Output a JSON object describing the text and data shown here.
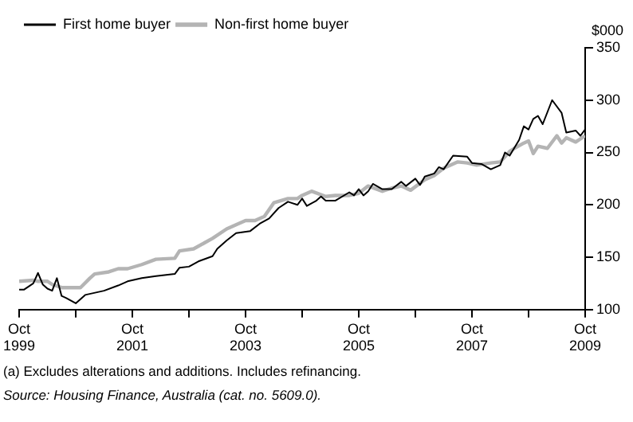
{
  "chart_data": {
    "type": "line",
    "ylabel": "$000",
    "xlim": [
      "1999-10",
      "2009-10"
    ],
    "xticks": [
      {
        "value": "1999-10",
        "label": "Oct 1999"
      },
      {
        "value": "2000-10",
        "label": null
      },
      {
        "value": "2001-10",
        "label": "Oct 2001"
      },
      {
        "value": "2002-10",
        "label": null
      },
      {
        "value": "2003-10",
        "label": "Oct 2003"
      },
      {
        "value": "2004-10",
        "label": null
      },
      {
        "value": "2005-10",
        "label": "Oct 2005"
      },
      {
        "value": "2006-10",
        "label": null
      },
      {
        "value": "2007-10",
        "label": "Oct 2007"
      },
      {
        "value": "2008-10",
        "label": null
      },
      {
        "value": "2009-10",
        "label": "Oct 2009"
      }
    ],
    "ylim": [
      100,
      350
    ],
    "yticks": [
      100,
      150,
      200,
      250,
      300,
      350
    ],
    "grid": false,
    "legend": "top left",
    "marker": "none",
    "line_style": "solid",
    "series": [
      {
        "name": "First home buyer",
        "color": "#000000",
        "x": [
          "1999-10",
          "1999-11",
          "2000-01",
          "2000-02",
          "2000-03",
          "2000-04",
          "2000-05",
          "2000-06",
          "2000-07",
          "2000-08",
          "2000-10",
          "2000-12",
          "2001-04",
          "2001-07",
          "2001-09",
          "2001-12",
          "2002-03",
          "2002-07",
          "2002-08",
          "2002-10",
          "2002-12",
          "2003-03",
          "2003-04",
          "2003-06",
          "2003-08",
          "2003-11",
          "2004-01",
          "2004-03",
          "2004-05",
          "2004-07",
          "2004-09",
          "2004-10",
          "2004-11",
          "2005-01",
          "2005-02",
          "2005-03",
          "2005-05",
          "2005-08",
          "2005-09",
          "2005-10",
          "2005-11",
          "2005-12",
          "2006-01",
          "2006-03",
          "2006-05",
          "2006-07",
          "2006-08",
          "2006-10",
          "2006-11",
          "2006-12",
          "2007-02",
          "2007-03",
          "2007-04",
          "2007-06",
          "2007-09",
          "2007-10",
          "2007-12",
          "2008-02",
          "2008-04",
          "2008-05",
          "2008-06",
          "2008-08",
          "2008-09",
          "2008-10",
          "2008-11",
          "2008-12",
          "2009-01",
          "2009-03",
          "2009-05",
          "2009-06",
          "2009-08",
          "2009-09",
          "2009-10"
        ],
        "values": [
          119,
          119,
          125,
          135,
          124,
          120,
          118,
          130,
          113,
          111,
          106,
          114,
          118,
          123,
          127,
          130,
          132,
          134,
          140,
          141,
          146,
          151,
          158,
          166,
          173,
          175,
          182,
          187,
          197,
          203,
          200,
          206,
          199,
          204,
          208,
          204,
          204,
          212,
          209,
          215,
          209,
          213,
          220,
          215,
          215,
          222,
          218,
          225,
          219,
          227,
          230,
          236,
          234,
          247,
          246,
          240,
          239,
          234,
          238,
          250,
          247,
          262,
          275,
          272,
          282,
          285,
          277,
          300,
          288,
          269,
          271,
          266,
          272
        ]
      },
      {
        "name": "Non-first home buyer",
        "color": "#b4b4b4",
        "x": [
          "1999-10",
          "2000-01",
          "2000-02",
          "2000-04",
          "2000-05",
          "2000-07",
          "2000-09",
          "2000-11",
          "2001-01",
          "2001-02",
          "2001-05",
          "2001-07",
          "2001-09",
          "2001-12",
          "2002-03",
          "2002-07",
          "2002-08",
          "2002-11",
          "2003-03",
          "2003-06",
          "2003-10",
          "2003-12",
          "2004-02",
          "2004-04",
          "2004-07",
          "2004-09",
          "2004-10",
          "2004-12",
          "2005-03",
          "2005-05",
          "2005-08",
          "2005-10",
          "2005-12",
          "2006-03",
          "2006-05",
          "2006-07",
          "2006-09",
          "2006-12",
          "2007-02",
          "2007-04",
          "2007-07",
          "2007-09",
          "2007-11",
          "2008-02",
          "2008-04",
          "2008-06",
          "2008-07",
          "2008-09",
          "2008-10",
          "2008-11",
          "2008-12",
          "2009-02",
          "2009-04",
          "2009-05",
          "2009-06",
          "2009-08",
          "2009-10"
        ],
        "values": [
          127,
          128,
          127,
          127,
          124,
          121,
          121,
          121,
          130,
          134,
          136,
          139,
          139,
          143,
          148,
          149,
          156,
          158,
          168,
          177,
          185,
          185,
          189,
          202,
          206,
          206,
          209,
          213,
          208,
          209,
          209,
          211,
          218,
          213,
          216,
          218,
          214,
          224,
          228,
          235,
          241,
          240,
          238,
          240,
          241,
          251,
          254,
          259,
          261,
          249,
          256,
          254,
          266,
          259,
          264,
          260,
          266
        ]
      }
    ],
    "annotations": [
      "(a) Excludes alterations and additions. Includes refinancing.",
      "Source: Housing Finance, Australia (cat. no. 5609.0)."
    ]
  }
}
